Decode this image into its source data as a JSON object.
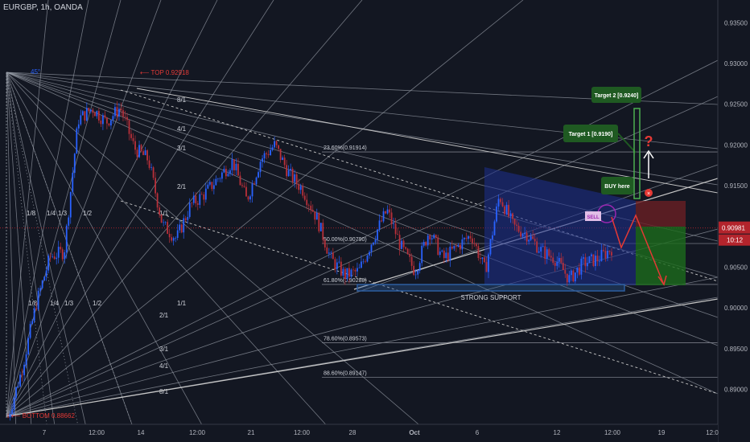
{
  "header": {
    "symbol": "EURGBP, 1h, OANDA"
  },
  "colors": {
    "background": "#131722",
    "candle_up": "#2962ff",
    "candle_down": "#b8303a",
    "fan": "#9aa0aa",
    "channel": "#c8c8c8",
    "price_line": "#b3242c",
    "box_blue": "#1d2f8f",
    "box_red": "#6a1f24",
    "box_green": "#1d6b1d",
    "target_green": "#1f5a22",
    "support": "#2d5fa0",
    "arrow_red": "#e53935",
    "marker_purple": "#9c27b0",
    "axis_text": "#b2b5be"
  },
  "chart_data": {
    "type": "candlestick",
    "y_axis": {
      "ticks": [
        "0.93500",
        "0.93000",
        "0.92500",
        "0.92000",
        "0.91500",
        "0.90500",
        "0.90000",
        "0.89500",
        "0.89000"
      ],
      "tick_values": [
        0.935,
        0.93,
        0.925,
        0.92,
        0.915,
        0.905,
        0.9,
        0.895,
        0.89
      ],
      "current_price": "0.90981",
      "countdown": "10:12",
      "range": [
        0.8865,
        0.937
      ]
    },
    "x_axis": {
      "labels": [
        "7",
        "12:00",
        "14",
        "12:00",
        "21",
        "12:00",
        "28",
        "Oct",
        "6",
        "12",
        "12:00",
        "19",
        "12:0"
      ]
    },
    "price_path": [
      0.8866,
      0.8925,
      0.9005,
      0.9063,
      0.9069,
      0.9231,
      0.9245,
      0.9228,
      0.9246,
      0.9196,
      0.9182,
      0.9102,
      0.9085,
      0.9126,
      0.914,
      0.916,
      0.918,
      0.9132,
      0.9182,
      0.92,
      0.9165,
      0.9145,
      0.911,
      0.906,
      0.904,
      0.9045,
      0.9085,
      0.912,
      0.9075,
      0.9045,
      0.9095,
      0.906,
      0.9075,
      0.909,
      0.9045,
      0.9138,
      0.91,
      0.909,
      0.907,
      0.906,
      0.9035,
      0.9055,
      0.906,
      0.9073
    ],
    "labels": {
      "top": "TOP 0.92918",
      "bottom": "BOTTOM 0.88662",
      "angle_45": "45°"
    },
    "fib_levels": [
      {
        "label": "23.60%(0.91914)",
        "value": 0.91914
      },
      {
        "label": "50.00%(0.90790)",
        "value": 0.9079
      },
      {
        "label": "61.80%(0.90288)",
        "value": 0.90288
      },
      {
        "label": "78.60%(0.89573)",
        "value": 0.89573
      },
      {
        "label": "88.60%(0.89147)",
        "value": 0.89147
      }
    ],
    "fan_labels_left": [
      "1/8",
      "1/4",
      "1/3",
      "1/2"
    ],
    "fan_labels_top": [
      "8/1",
      "4/1",
      "3/1",
      "2/1",
      "1/1"
    ],
    "fan_labels_bottom": [
      "1/1",
      "2/1",
      "3/1",
      "4/1",
      "8/1"
    ],
    "annotations": {
      "target2": "Target 2 [0.9240]",
      "target1": "Target 1 [0.9190]",
      "buy": "BUY here",
      "sell": "SELL",
      "support": "STRONG SUPPORT",
      "question": "?"
    }
  }
}
